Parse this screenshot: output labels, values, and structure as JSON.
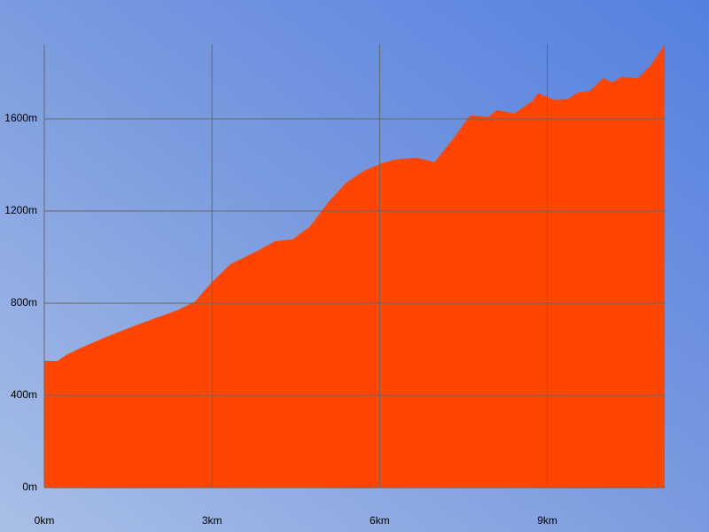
{
  "chart_data": {
    "type": "area",
    "color": "#ff4500",
    "grid": true,
    "x": [
      0,
      0.24,
      0.4,
      0.63,
      1.11,
      1.59,
      2.06,
      2.38,
      2.7,
      3.0,
      3.33,
      3.81,
      4.13,
      4.44,
      4.76,
      5.08,
      5.4,
      5.71,
      6.0,
      6.27,
      6.67,
      6.98,
      7.3,
      7.62,
      7.94,
      8.1,
      8.41,
      8.73,
      8.84,
      9.13,
      9.37,
      9.52,
      9.76,
      10.0,
      10.16,
      10.32,
      10.63,
      10.87,
      11.08,
      11.1
    ],
    "values": [
      550,
      550,
      577,
      604,
      654,
      700,
      742,
      769,
      808,
      892,
      969,
      1027,
      1069,
      1077,
      1135,
      1238,
      1323,
      1373,
      1404,
      1423,
      1431,
      1412,
      1508,
      1615,
      1608,
      1638,
      1623,
      1677,
      1712,
      1681,
      1685,
      1712,
      1719,
      1777,
      1758,
      1781,
      1777,
      1838,
      1915,
      1920
    ],
    "xlim": [
      0,
      11.1
    ],
    "ylim": [
      0,
      1923
    ],
    "xticks": [
      {
        "value": 0,
        "label": "0km"
      },
      {
        "value": 3,
        "label": "3km"
      },
      {
        "value": 6,
        "label": "6km"
      },
      {
        "value": 9,
        "label": "9km"
      }
    ],
    "yticks": [
      {
        "value": 0,
        "label": "0m"
      },
      {
        "value": 400,
        "label": "400m"
      },
      {
        "value": 800,
        "label": "800m"
      },
      {
        "value": 1200,
        "label": "1200m"
      },
      {
        "value": 1600,
        "label": "1600m"
      }
    ]
  }
}
